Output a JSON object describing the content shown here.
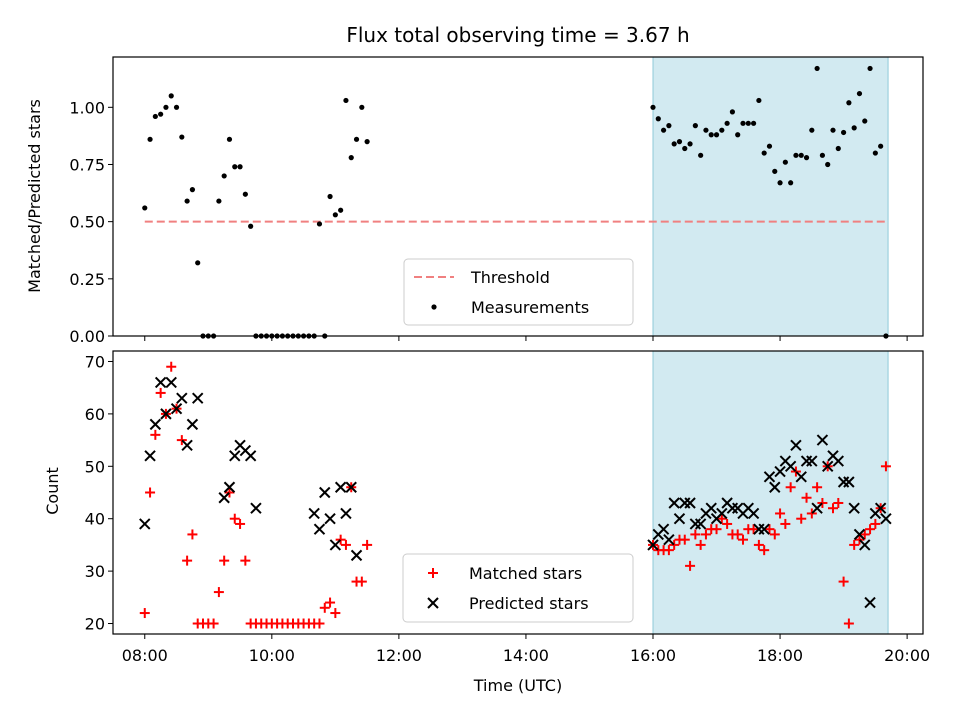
{
  "chart_data": [
    {
      "type": "scatter",
      "title": "Flux total observing time = 3.67 h",
      "xlabel": "",
      "ylabel": "Matched/Predicted stars",
      "xlim": [
        "07:30",
        "20:15"
      ],
      "ylim": [
        0,
        1.22
      ],
      "y_ticks": [
        "0.00",
        "0.25",
        "0.50",
        "0.75",
        "1.00"
      ],
      "shaded_span": [
        "16:00",
        "19:42"
      ],
      "shade_color": "#add8e6",
      "threshold": {
        "name": "Threshold",
        "value": 0.5,
        "x_range": [
          "08:00",
          "19:42"
        ],
        "color": "#f08080",
        "style": "dashed"
      },
      "legend": {
        "position": "lower-center",
        "entries": [
          "Threshold",
          "Measurements"
        ]
      },
      "series": [
        {
          "name": "Measurements",
          "marker": "dot",
          "color": "#000000",
          "x": [
            "08:00",
            "08:05",
            "08:10",
            "08:15",
            "08:20",
            "08:25",
            "08:30",
            "08:35",
            "08:40",
            "08:45",
            "08:50",
            "08:55",
            "09:00",
            "09:05",
            "09:10",
            "09:15",
            "09:20",
            "09:25",
            "09:30",
            "09:35",
            "09:40",
            "09:45",
            "09:50",
            "09:55",
            "10:00",
            "10:05",
            "10:10",
            "10:15",
            "10:20",
            "10:25",
            "10:30",
            "10:35",
            "10:40",
            "10:45",
            "10:50",
            "10:55",
            "11:00",
            "11:05",
            "11:10",
            "11:15",
            "11:20",
            "11:25",
            "11:30",
            "16:00",
            "16:05",
            "16:10",
            "16:15",
            "16:20",
            "16:25",
            "16:30",
            "16:35",
            "16:40",
            "16:45",
            "16:50",
            "16:55",
            "17:00",
            "17:05",
            "17:10",
            "17:15",
            "17:20",
            "17:25",
            "17:30",
            "17:35",
            "17:40",
            "17:45",
            "17:50",
            "17:55",
            "18:00",
            "18:05",
            "18:10",
            "18:15",
            "18:20",
            "18:25",
            "18:30",
            "18:35",
            "18:40",
            "18:45",
            "18:50",
            "18:55",
            "19:00",
            "19:05",
            "19:10",
            "19:15",
            "19:20",
            "19:25",
            "19:30",
            "19:35",
            "19:40"
          ],
          "y": [
            0.56,
            0.86,
            0.96,
            0.97,
            1.0,
            1.05,
            1.0,
            0.87,
            0.59,
            0.64,
            0.32,
            0.0,
            0.0,
            0.0,
            0.59,
            0.7,
            0.86,
            0.74,
            0.74,
            0.62,
            0.48,
            0.0,
            0.0,
            0.0,
            0.0,
            0.0,
            0.0,
            0.0,
            0.0,
            0.0,
            0.0,
            0.0,
            0.0,
            0.49,
            0.0,
            0.61,
            0.53,
            0.55,
            1.03,
            0.78,
            0.86,
            1.0,
            0.85,
            1.0,
            0.95,
            0.9,
            0.92,
            0.84,
            0.85,
            0.82,
            0.84,
            0.92,
            0.79,
            0.9,
            0.88,
            0.88,
            0.9,
            0.93,
            0.98,
            0.88,
            0.93,
            0.93,
            0.93,
            1.03,
            0.8,
            0.83,
            0.72,
            0.67,
            0.76,
            0.67,
            0.79,
            0.79,
            0.78,
            0.9,
            1.17,
            0.79,
            0.75,
            0.9,
            0.82,
            0.89,
            1.02,
            0.91,
            1.06,
            0.94,
            1.17,
            0.8,
            0.83,
            0.0
          ]
        }
      ]
    },
    {
      "type": "scatter",
      "title": "",
      "xlabel": "Time (UTC)",
      "ylabel": "Count",
      "xlim": [
        "07:30",
        "20:15"
      ],
      "ylim": [
        18,
        72
      ],
      "x_ticks": [
        "08:00",
        "10:00",
        "12:00",
        "14:00",
        "16:00",
        "18:00",
        "20:00"
      ],
      "y_ticks": [
        "20",
        "30",
        "40",
        "50",
        "60",
        "70"
      ],
      "shaded_span": [
        "16:00",
        "19:42"
      ],
      "shade_color": "#add8e6",
      "legend": {
        "position": "lower-center",
        "entries": [
          "Matched stars",
          "Predicted stars"
        ]
      },
      "series": [
        {
          "name": "Matched stars",
          "marker": "plus",
          "color": "#ff0000",
          "x": [
            "08:00",
            "08:05",
            "08:10",
            "08:15",
            "08:20",
            "08:25",
            "08:30",
            "08:35",
            "08:40",
            "08:45",
            "08:50",
            "08:55",
            "09:00",
            "09:05",
            "09:10",
            "09:15",
            "09:20",
            "09:25",
            "09:30",
            "09:35",
            "09:40",
            "09:45",
            "09:50",
            "09:55",
            "10:00",
            "10:05",
            "10:10",
            "10:15",
            "10:20",
            "10:25",
            "10:30",
            "10:35",
            "10:40",
            "10:45",
            "10:50",
            "10:55",
            "11:00",
            "11:05",
            "11:10",
            "11:15",
            "11:20",
            "11:25",
            "11:30",
            "16:00",
            "16:05",
            "16:10",
            "16:15",
            "16:20",
            "16:25",
            "16:30",
            "16:35",
            "16:40",
            "16:45",
            "16:50",
            "16:55",
            "17:00",
            "17:05",
            "17:10",
            "17:15",
            "17:20",
            "17:25",
            "17:30",
            "17:35",
            "17:40",
            "17:45",
            "17:50",
            "17:55",
            "18:00",
            "18:05",
            "18:10",
            "18:15",
            "18:20",
            "18:25",
            "18:30",
            "18:35",
            "18:40",
            "18:45",
            "18:50",
            "18:55",
            "19:00",
            "19:05",
            "19:10",
            "19:15",
            "19:20",
            "19:25",
            "19:30",
            "19:35",
            "19:40"
          ],
          "y": [
            22,
            45,
            56,
            64,
            60,
            69,
            61,
            55,
            32,
            37,
            20,
            20,
            20,
            20,
            26,
            32,
            45,
            40,
            39,
            32,
            20,
            20,
            20,
            20,
            20,
            20,
            20,
            20,
            20,
            20,
            20,
            20,
            20,
            20,
            23,
            24,
            22,
            36,
            35,
            46,
            28,
            28,
            35,
            35,
            34,
            34,
            34,
            35,
            36,
            36,
            31,
            37,
            35,
            37,
            38,
            38,
            40,
            39,
            37,
            37,
            36,
            38,
            38,
            35,
            34,
            38,
            37,
            41,
            39,
            46,
            49,
            40,
            44,
            41,
            46,
            43,
            50,
            42,
            43,
            28,
            20,
            35,
            36,
            37,
            38,
            39,
            42,
            50
          ]
        },
        {
          "name": "Predicted stars",
          "marker": "cross",
          "color": "#000000",
          "x": [
            "08:00",
            "08:05",
            "08:10",
            "08:15",
            "08:20",
            "08:25",
            "08:30",
            "08:35",
            "08:40",
            "08:45",
            "08:50",
            "09:15",
            "09:20",
            "09:25",
            "09:30",
            "09:35",
            "09:40",
            "09:45",
            "10:40",
            "10:45",
            "10:50",
            "10:55",
            "11:00",
            "11:05",
            "11:10",
            "11:15",
            "11:20",
            "16:00",
            "16:05",
            "16:10",
            "16:15",
            "16:20",
            "16:25",
            "16:30",
            "16:35",
            "16:40",
            "16:45",
            "16:50",
            "16:55",
            "17:00",
            "17:05",
            "17:10",
            "17:15",
            "17:20",
            "17:25",
            "17:30",
            "17:35",
            "17:40",
            "17:45",
            "17:50",
            "17:55",
            "18:00",
            "18:05",
            "18:10",
            "18:15",
            "18:20",
            "18:25",
            "18:30",
            "18:35",
            "18:40",
            "18:45",
            "18:50",
            "18:55",
            "19:00",
            "19:05",
            "19:10",
            "19:15",
            "19:20",
            "19:25",
            "19:30",
            "19:35",
            "19:40"
          ],
          "y": [
            39,
            52,
            58,
            66,
            60,
            66,
            61,
            63,
            54,
            58,
            63,
            44,
            46,
            52,
            54,
            53,
            52,
            42,
            41,
            38,
            45,
            40,
            35,
            46,
            41,
            46,
            33,
            35,
            37,
            38,
            36,
            43,
            40,
            43,
            43,
            39,
            39,
            41,
            42,
            40,
            41,
            43,
            42,
            42,
            41,
            42,
            41,
            38,
            38,
            48,
            46,
            49,
            51,
            50,
            54,
            48,
            51,
            51,
            42,
            55,
            50,
            52,
            51,
            47,
            47,
            42,
            37,
            35,
            24,
            41,
            42,
            40
          ]
        }
      ]
    }
  ]
}
